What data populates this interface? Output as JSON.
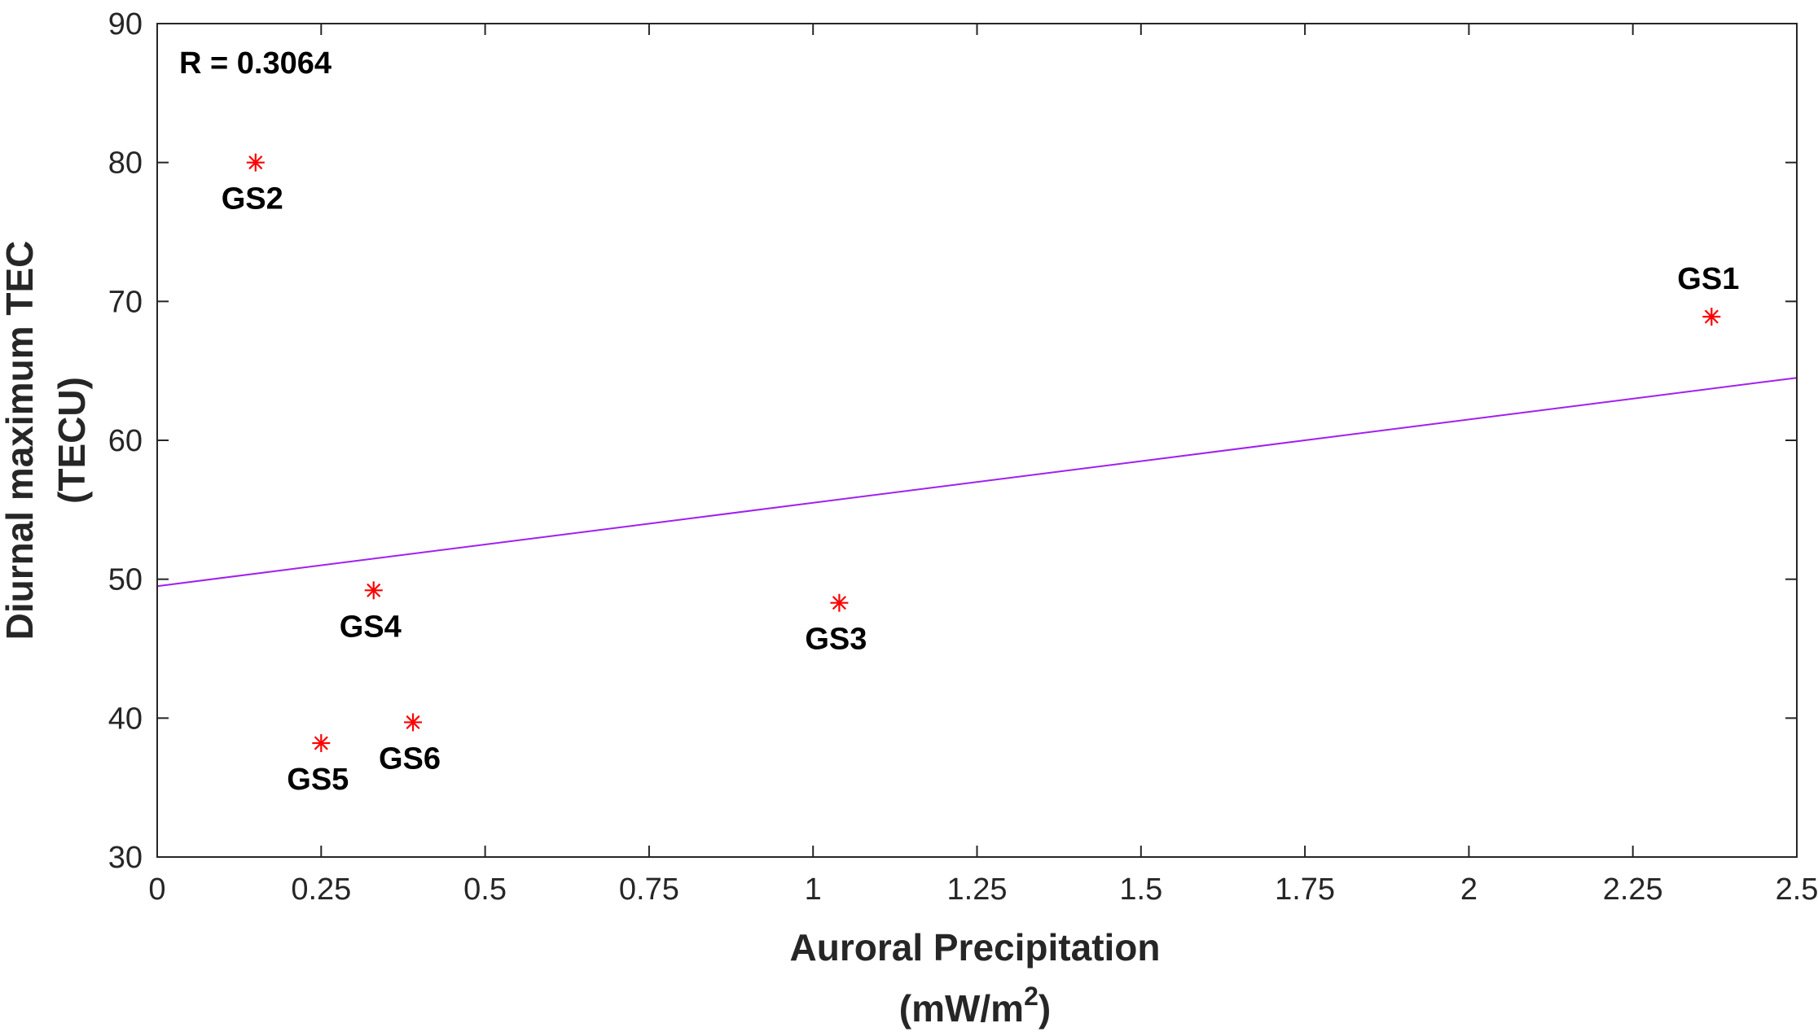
{
  "chart_data": {
    "type": "scatter",
    "title": "",
    "xlabel": "Auroral Precipitation",
    "xlabel_unit_prefix": "(mW/m",
    "xlabel_unit_sup": "2",
    "xlabel_unit_suffix": ")",
    "ylabel_line1": "Diurnal maximum TEC",
    "ylabel_line2": "(TECU)",
    "xlim": [
      0,
      2.5
    ],
    "ylim": [
      30,
      90
    ],
    "xticks": [
      0,
      0.25,
      0.5,
      0.75,
      1,
      1.25,
      1.5,
      1.75,
      2,
      2.25,
      2.5
    ],
    "xtick_labels": [
      "0",
      "0.25",
      "0.5",
      "0.75",
      "1",
      "1.25",
      "1.5",
      "1.75",
      "2",
      "2.25",
      "2.5"
    ],
    "yticks": [
      30,
      40,
      50,
      60,
      70,
      80,
      90
    ],
    "ytick_labels": [
      "30",
      "40",
      "50",
      "60",
      "70",
      "80",
      "90"
    ],
    "grid": false,
    "annotation": "R = 0.3064",
    "marker_color": "#ff0000",
    "line_color": "#a020f0",
    "points": [
      {
        "label": "GS1",
        "x": 2.37,
        "y": 68.9,
        "label_pos": "above"
      },
      {
        "label": "GS2",
        "x": 0.15,
        "y": 80.0,
        "label_pos": "below"
      },
      {
        "label": "GS3",
        "x": 1.04,
        "y": 48.3,
        "label_pos": "below"
      },
      {
        "label": "GS4",
        "x": 0.33,
        "y": 49.2,
        "label_pos": "below"
      },
      {
        "label": "GS5",
        "x": 0.25,
        "y": 38.2,
        "label_pos": "below"
      },
      {
        "label": "GS6",
        "x": 0.39,
        "y": 39.7,
        "label_pos": "below"
      }
    ],
    "fit_line": {
      "x": [
        0,
        2.5
      ],
      "y": [
        49.5,
        64.5
      ]
    }
  }
}
